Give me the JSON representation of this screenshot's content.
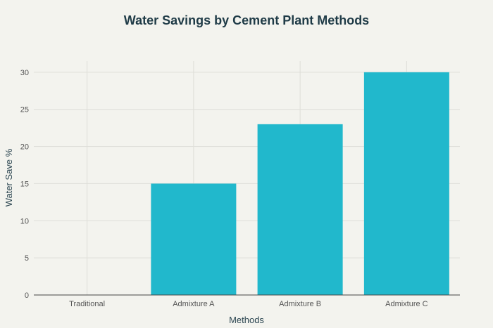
{
  "chart_data": {
    "type": "bar",
    "title": "Water Savings by Cement Plant Methods",
    "xlabel": "Methods",
    "ylabel": "Water Save %",
    "categories": [
      "Traditional",
      "Admixture A",
      "Admixture B",
      "Admixture C"
    ],
    "values": [
      0,
      15,
      23,
      30
    ],
    "ylim": [
      0,
      31.5
    ],
    "yticks": [
      0,
      5,
      10,
      15,
      20,
      25,
      30
    ],
    "grid": true,
    "bar_color": "#21b8cc"
  }
}
